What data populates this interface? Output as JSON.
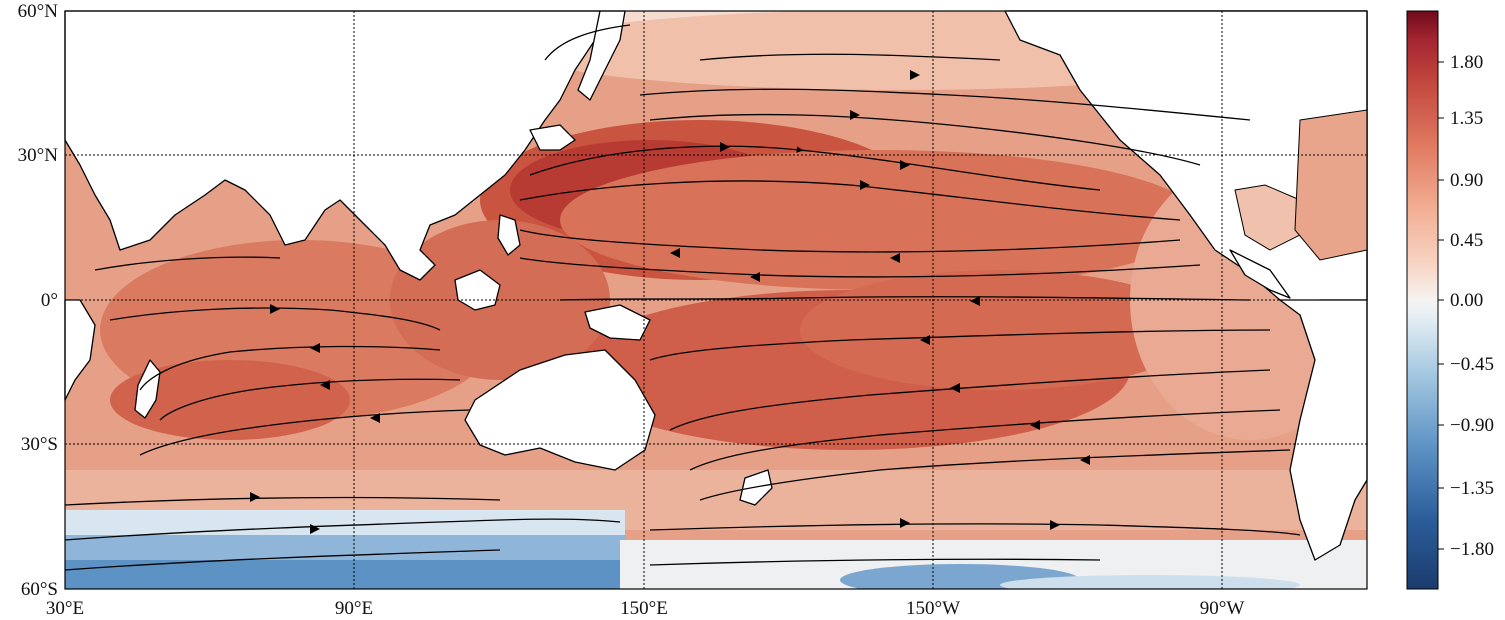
{
  "map": {
    "lat_labels": [
      "60°N",
      "30°N",
      "0°",
      "30°S",
      "60°S"
    ],
    "lon_labels": [
      "30°E",
      "90°E",
      "150°E",
      "150°W",
      "90°W"
    ],
    "gridlines": "dotted",
    "projection": "equirectangular",
    "extent": {
      "lon": [
        30,
        300
      ],
      "lat": [
        -60,
        60
      ]
    },
    "field": "filled contours with streamlines",
    "colormap": "RdBu_r"
  },
  "colorbar": {
    "ticks": [
      "1.80",
      "1.35",
      "0.90",
      "0.45",
      "0.00",
      "−0.45",
      "−0.90",
      "−1.35",
      "−1.80"
    ],
    "range": [
      -2.1,
      2.1
    ],
    "colors": [
      "#1b3c6e",
      "#2c5d9a",
      "#3f7cb4",
      "#6a9fcb",
      "#9ec4df",
      "#cfe2ef",
      "#f5f0ee",
      "#f8d2c1",
      "#f0a98f",
      "#e07f64",
      "#cc5644",
      "#b02b2f",
      "#7d0b1e"
    ]
  }
}
